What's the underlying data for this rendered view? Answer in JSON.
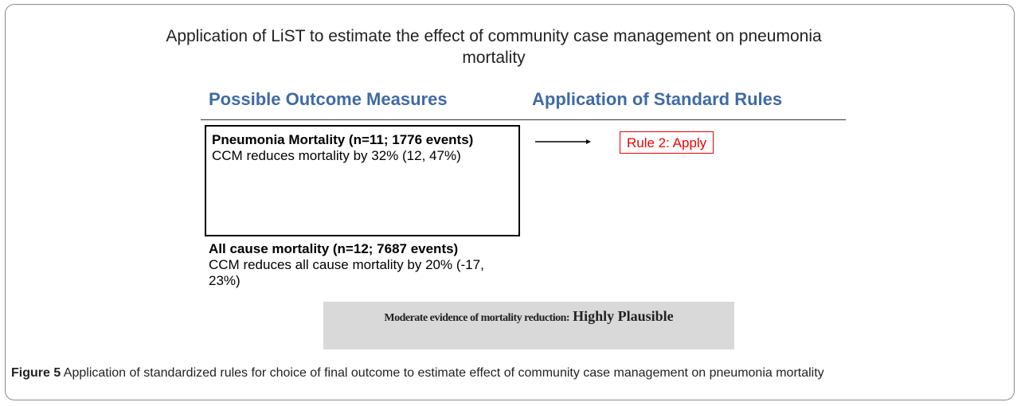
{
  "figure": {
    "title": "Application of LiST to estimate the effect of community case management on pneumonia mortality",
    "columns": [
      "Possible Outcome Measures",
      "Application of Standard Rules"
    ],
    "outcomes": [
      {
        "title": "Pneumonia Mortality (n=11; 1776 events)",
        "text": "CCM reduces mortality by 32% (12, 47%)"
      },
      {
        "title": "All cause mortality (n=12; 7687 events)",
        "text": "CCM reduces all cause mortality by 20% (-17, 23%)"
      }
    ],
    "rule": "Rule 2: Apply",
    "conclusion": {
      "lead": "Moderate evidence of mortality reduction:",
      "emphasis": "Highly Plausible"
    }
  },
  "caption": {
    "label": "Figure 5",
    "text": "Application of standardized rules for choice of final outcome to estimate effect of community case management on pneumonia mortality"
  }
}
